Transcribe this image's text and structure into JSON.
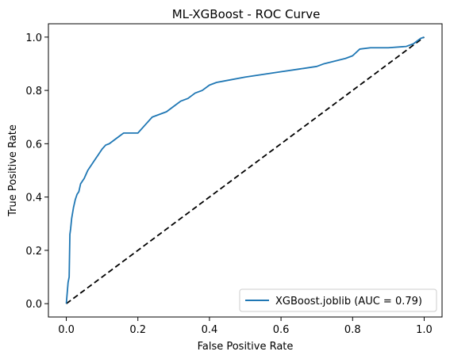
{
  "chart_data": {
    "type": "line",
    "title": "ML-XGBoost - ROC Curve",
    "xlabel": "False Positive Rate",
    "ylabel": "True Positive Rate",
    "xlim": [
      -0.05,
      1.05
    ],
    "ylim": [
      -0.05,
      1.05
    ],
    "xticks": [
      0.0,
      0.2,
      0.4,
      0.6,
      0.8,
      1.0
    ],
    "yticks": [
      0.0,
      0.2,
      0.4,
      0.6,
      0.8,
      1.0
    ],
    "xtick_labels": [
      "0.0",
      "0.2",
      "0.4",
      "0.6",
      "0.8",
      "1.0"
    ],
    "ytick_labels": [
      "0.0",
      "0.2",
      "0.4",
      "0.6",
      "0.8",
      "1.0"
    ],
    "grid": false,
    "legend_position": "lower-right",
    "series": [
      {
        "name": "XGBoost.joblib (AUC = 0.79)",
        "color": "#1f77b4",
        "style": "solid",
        "x": [
          0.0,
          0.005,
          0.008,
          0.01,
          0.012,
          0.015,
          0.02,
          0.025,
          0.03,
          0.035,
          0.04,
          0.045,
          0.05,
          0.06,
          0.07,
          0.08,
          0.09,
          0.1,
          0.11,
          0.12,
          0.13,
          0.14,
          0.15,
          0.16,
          0.18,
          0.2,
          0.22,
          0.24,
          0.26,
          0.28,
          0.3,
          0.32,
          0.34,
          0.36,
          0.38,
          0.4,
          0.42,
          0.44,
          0.5,
          0.55,
          0.6,
          0.65,
          0.7,
          0.72,
          0.75,
          0.78,
          0.8,
          0.82,
          0.85,
          0.9,
          0.95,
          0.97,
          0.98,
          0.99,
          1.0
        ],
        "y": [
          0.0,
          0.08,
          0.1,
          0.26,
          0.28,
          0.32,
          0.36,
          0.39,
          0.41,
          0.42,
          0.45,
          0.46,
          0.47,
          0.5,
          0.52,
          0.54,
          0.56,
          0.58,
          0.595,
          0.6,
          0.61,
          0.62,
          0.63,
          0.64,
          0.64,
          0.64,
          0.67,
          0.7,
          0.71,
          0.72,
          0.74,
          0.76,
          0.77,
          0.79,
          0.8,
          0.82,
          0.83,
          0.835,
          0.85,
          0.86,
          0.87,
          0.88,
          0.89,
          0.9,
          0.91,
          0.92,
          0.93,
          0.955,
          0.96,
          0.96,
          0.965,
          0.975,
          0.985,
          0.995,
          1.0
        ]
      }
    ],
    "reference_line": {
      "color": "#000000",
      "style": "dashed",
      "x": [
        0.0,
        1.0
      ],
      "y": [
        0.0,
        1.0
      ]
    }
  }
}
